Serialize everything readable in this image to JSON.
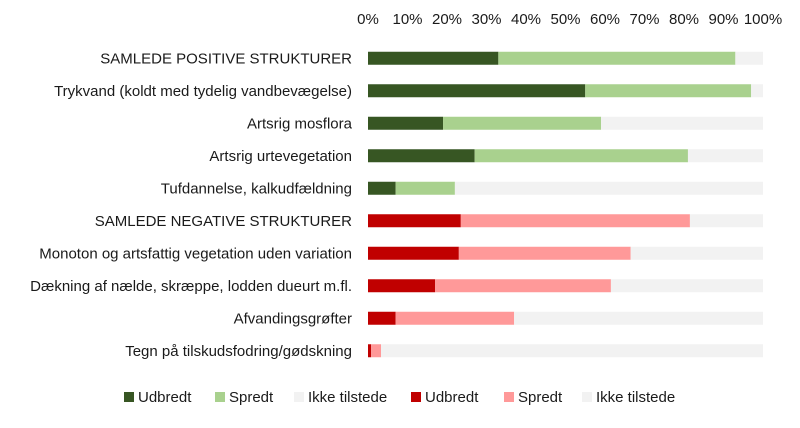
{
  "chart_data": {
    "type": "bar",
    "orientation": "horizontal",
    "stacked": true,
    "xlim": [
      0,
      100
    ],
    "x_ticks": [
      "0%",
      "10%",
      "20%",
      "30%",
      "40%",
      "50%",
      "60%",
      "70%",
      "80%",
      "90%",
      "100%"
    ],
    "x_axis_position": "top",
    "grid": false,
    "legend_position": "bottom",
    "categories": [
      "SAMLEDE POSITIVE STRUKTURER",
      "Trykvand (koldt med tydelig vandbevægelse)",
      "Artsrig mosflora",
      "Artsrig urtevegetation",
      "Tufdannelse, kalkudfældning",
      "SAMLEDE NEGATIVE STRUKTURER",
      "Monoton og artsfattig vegetation uden variation",
      "Dækning af nælde, skræppe, lodden dueurt m.fl.",
      "Afvandingsgrøfter",
      "Tegn på tilskudsfodring/gødskning"
    ],
    "group": [
      "positive",
      "positive",
      "positive",
      "positive",
      "positive",
      "negative",
      "negative",
      "negative",
      "negative",
      "negative"
    ],
    "series": [
      {
        "name": "Udbredt",
        "group": "positive",
        "color": "#375623",
        "values": [
          33,
          55,
          19,
          27,
          7,
          null,
          null,
          null,
          null,
          null
        ]
      },
      {
        "name": "Spredt",
        "group": "positive",
        "color": "#a9d18e",
        "values": [
          60,
          42,
          40,
          54,
          15,
          null,
          null,
          null,
          null,
          null
        ]
      },
      {
        "name": "Ikke tilstede",
        "group": "positive",
        "color": "#f2f2f2",
        "values": [
          7,
          3,
          41,
          19,
          78,
          null,
          null,
          null,
          null,
          null
        ]
      },
      {
        "name": "Udbredt",
        "group": "negative",
        "color": "#c00000",
        "values": [
          null,
          null,
          null,
          null,
          null,
          23.5,
          23,
          17,
          7,
          0.8
        ]
      },
      {
        "name": "Spredt",
        "group": "negative",
        "color": "#ff9999",
        "values": [
          null,
          null,
          null,
          null,
          null,
          58,
          43.5,
          44.5,
          30,
          2.5
        ]
      },
      {
        "name": "Ikke tilstede",
        "group": "negative",
        "color": "#f2f2f2",
        "values": [
          null,
          null,
          null,
          null,
          null,
          18.5,
          33.5,
          38.5,
          63,
          96.7
        ]
      }
    ]
  }
}
